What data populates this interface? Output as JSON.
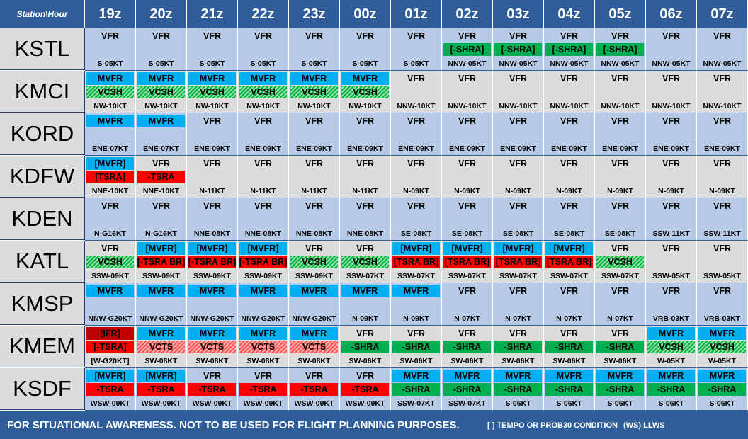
{
  "header": {
    "corner": "Station\\Hour",
    "hours": [
      "19z",
      "20z",
      "21z",
      "22z",
      "23z",
      "00z",
      "01z",
      "02z",
      "03z",
      "04z",
      "05z",
      "06z",
      "07z"
    ]
  },
  "colors": {
    "header": "#2f5d9a",
    "MVFR": "#00b0f0",
    "IFR": "#c00000",
    "thunderstorm": "#ff0000",
    "rain": "#00b050",
    "row_a": "#b7cbe6",
    "row_b": "#dcdcdc"
  },
  "rows": [
    {
      "station": "KSTL",
      "cells": [
        {
          "c1": "VFR",
          "c2": "",
          "w": "S-05KT"
        },
        {
          "c1": "VFR",
          "c2": "",
          "w": "S-05KT"
        },
        {
          "c1": "VFR",
          "c2": "",
          "w": "S-05KT"
        },
        {
          "c1": "VFR",
          "c2": "",
          "w": "S-05KT"
        },
        {
          "c1": "VFR",
          "c2": "",
          "w": "S-05KT"
        },
        {
          "c1": "VFR",
          "c2": "",
          "w": "S-05KT"
        },
        {
          "c1": "VFR",
          "c2": "",
          "w": "S-05KT"
        },
        {
          "c1": "VFR",
          "c2": "[-SHRA]",
          "w": "NNW-05KT"
        },
        {
          "c1": "VFR",
          "c2": "[-SHRA]",
          "w": "NNW-05KT"
        },
        {
          "c1": "VFR",
          "c2": "[-SHRA]",
          "w": "NNW-05KT"
        },
        {
          "c1": "VFR",
          "c2": "[-SHRA]",
          "w": "NNW-05KT"
        },
        {
          "c1": "VFR",
          "c2": "",
          "w": "NNW-05KT"
        },
        {
          "c1": "VFR",
          "c2": "",
          "w": "NNW-05KT"
        }
      ]
    },
    {
      "station": "KMCI",
      "cells": [
        {
          "c1": "MVFR",
          "c2": "VCSH",
          "w": "NW-10KT"
        },
        {
          "c1": "MVFR",
          "c2": "VCSH",
          "w": "NW-10KT"
        },
        {
          "c1": "MVFR",
          "c2": "VCSH",
          "w": "NW-10KT"
        },
        {
          "c1": "MVFR",
          "c2": "VCSH",
          "w": "NW-10KT"
        },
        {
          "c1": "MVFR",
          "c2": "VCSH",
          "w": "NW-10KT"
        },
        {
          "c1": "MVFR",
          "c2": "VCSH",
          "w": "NW-10KT"
        },
        {
          "c1": "VFR",
          "c2": "",
          "w": "NNW-10KT"
        },
        {
          "c1": "VFR",
          "c2": "",
          "w": "NNW-10KT"
        },
        {
          "c1": "VFR",
          "c2": "",
          "w": "NNW-10KT"
        },
        {
          "c1": "VFR",
          "c2": "",
          "w": "NNW-10KT"
        },
        {
          "c1": "VFR",
          "c2": "",
          "w": "NNW-10KT"
        },
        {
          "c1": "VFR",
          "c2": "",
          "w": "NNW-10KT"
        },
        {
          "c1": "VFR",
          "c2": "",
          "w": "NNW-10KT"
        }
      ]
    },
    {
      "station": "KORD",
      "cells": [
        {
          "c1": "MVFR",
          "c2": "",
          "w": "ENE-07KT"
        },
        {
          "c1": "MVFR",
          "c2": "",
          "w": "ENE-07KT"
        },
        {
          "c1": "VFR",
          "c2": "",
          "w": "ENE-09KT"
        },
        {
          "c1": "VFR",
          "c2": "",
          "w": "ENE-09KT"
        },
        {
          "c1": "VFR",
          "c2": "",
          "w": "ENE-09KT"
        },
        {
          "c1": "VFR",
          "c2": "",
          "w": "ENE-09KT"
        },
        {
          "c1": "VFR",
          "c2": "",
          "w": "ENE-09KT"
        },
        {
          "c1": "VFR",
          "c2": "",
          "w": "ENE-09KT"
        },
        {
          "c1": "VFR",
          "c2": "",
          "w": "ENE-09KT"
        },
        {
          "c1": "VFR",
          "c2": "",
          "w": "ENE-09KT"
        },
        {
          "c1": "VFR",
          "c2": "",
          "w": "ENE-09KT"
        },
        {
          "c1": "VFR",
          "c2": "",
          "w": "ENE-09KT"
        },
        {
          "c1": "VFR",
          "c2": "",
          "w": "ENE-09KT"
        }
      ]
    },
    {
      "station": "KDFW",
      "cells": [
        {
          "c1": "[MVFR]",
          "c2": "[TSRA]",
          "w": "NNE-10KT"
        },
        {
          "c1": "VFR",
          "c2": "-TSRA",
          "w": "NNE-10KT"
        },
        {
          "c1": "VFR",
          "c2": "",
          "w": "N-11KT"
        },
        {
          "c1": "VFR",
          "c2": "",
          "w": "N-11KT"
        },
        {
          "c1": "VFR",
          "c2": "",
          "w": "N-11KT"
        },
        {
          "c1": "VFR",
          "c2": "",
          "w": "N-11KT"
        },
        {
          "c1": "VFR",
          "c2": "",
          "w": "N-09KT"
        },
        {
          "c1": "VFR",
          "c2": "",
          "w": "N-09KT"
        },
        {
          "c1": "VFR",
          "c2": "",
          "w": "N-09KT"
        },
        {
          "c1": "VFR",
          "c2": "",
          "w": "N-09KT"
        },
        {
          "c1": "VFR",
          "c2": "",
          "w": "N-09KT"
        },
        {
          "c1": "VFR",
          "c2": "",
          "w": "N-09KT"
        },
        {
          "c1": "VFR",
          "c2": "",
          "w": "N-09KT"
        }
      ]
    },
    {
      "station": "KDEN",
      "cells": [
        {
          "c1": "VFR",
          "c2": "",
          "w": "N-G16KT"
        },
        {
          "c1": "VFR",
          "c2": "",
          "w": "N-G16KT"
        },
        {
          "c1": "VFR",
          "c2": "",
          "w": "NNE-08KT"
        },
        {
          "c1": "VFR",
          "c2": "",
          "w": "NNE-08KT"
        },
        {
          "c1": "VFR",
          "c2": "",
          "w": "NNE-08KT"
        },
        {
          "c1": "VFR",
          "c2": "",
          "w": "NNE-08KT"
        },
        {
          "c1": "VFR",
          "c2": "",
          "w": "SE-08KT"
        },
        {
          "c1": "VFR",
          "c2": "",
          "w": "SE-08KT"
        },
        {
          "c1": "VFR",
          "c2": "",
          "w": "SE-08KT"
        },
        {
          "c1": "VFR",
          "c2": "",
          "w": "SE-08KT"
        },
        {
          "c1": "VFR",
          "c2": "",
          "w": "SE-08KT"
        },
        {
          "c1": "VFR",
          "c2": "",
          "w": "SSW-11KT"
        },
        {
          "c1": "VFR",
          "c2": "",
          "w": "SSW-11KT"
        }
      ]
    },
    {
      "station": "KATL",
      "cells": [
        {
          "c1": "VFR",
          "c2": "VCSH",
          "w": "SSW-09KT"
        },
        {
          "c1": "[MVFR]",
          "c2": "[-TSRA BR]",
          "w": "SSW-09KT"
        },
        {
          "c1": "[MVFR]",
          "c2": "[-TSRA BR]",
          "w": "SSW-09KT"
        },
        {
          "c1": "[MVFR]",
          "c2": "[-TSRA BR]",
          "w": "SSW-09KT"
        },
        {
          "c1": "VFR",
          "c2": "VCSH",
          "w": "SSW-09KT"
        },
        {
          "c1": "VFR",
          "c2": "VCSH",
          "w": "SSW-07KT"
        },
        {
          "c1": "[MVFR]",
          "c2": "[TSRA BR]",
          "w": "SSW-07KT"
        },
        {
          "c1": "[MVFR]",
          "c2": "[TSRA BR]",
          "w": "SSW-07KT"
        },
        {
          "c1": "[MVFR]",
          "c2": "[TSRA BR]",
          "w": "SSW-07KT"
        },
        {
          "c1": "[MVFR]",
          "c2": "[TSRA BR]",
          "w": "SSW-07KT"
        },
        {
          "c1": "VFR",
          "c2": "VCSH",
          "w": "SSW-07KT"
        },
        {
          "c1": "VFR",
          "c2": "",
          "w": "SSW-05KT"
        },
        {
          "c1": "VFR",
          "c2": "",
          "w": "SSW-05KT"
        }
      ]
    },
    {
      "station": "KMSP",
      "cells": [
        {
          "c1": "MVFR",
          "c2": "",
          "w": "NNW-G20KT"
        },
        {
          "c1": "MVFR",
          "c2": "",
          "w": "NNW-G20KT"
        },
        {
          "c1": "MVFR",
          "c2": "",
          "w": "NNW-G20KT"
        },
        {
          "c1": "MVFR",
          "c2": "",
          "w": "NNW-G20KT"
        },
        {
          "c1": "MVFR",
          "c2": "",
          "w": "NNW-G20KT"
        },
        {
          "c1": "MVFR",
          "c2": "",
          "w": "N-09KT"
        },
        {
          "c1": "MVFR",
          "c2": "",
          "w": "N-09KT"
        },
        {
          "c1": "VFR",
          "c2": "",
          "w": "N-07KT"
        },
        {
          "c1": "VFR",
          "c2": "",
          "w": "N-07KT"
        },
        {
          "c1": "VFR",
          "c2": "",
          "w": "N-07KT"
        },
        {
          "c1": "VFR",
          "c2": "",
          "w": "N-07KT"
        },
        {
          "c1": "VFR",
          "c2": "",
          "w": "VRB-03KT"
        },
        {
          "c1": "VFR",
          "c2": "",
          "w": "VRB-03KT"
        }
      ]
    },
    {
      "station": "KMEM",
      "cells": [
        {
          "c1": "[IFR]",
          "c2": "[-TSRA]",
          "w": "[W-G20KT]"
        },
        {
          "c1": "MVFR",
          "c2": "VCTS",
          "w": "SW-08KT"
        },
        {
          "c1": "MVFR",
          "c2": "VCTS",
          "w": "SW-08KT"
        },
        {
          "c1": "MVFR",
          "c2": "VCTS",
          "w": "SW-08KT"
        },
        {
          "c1": "MVFR",
          "c2": "VCTS",
          "w": "SW-08KT"
        },
        {
          "c1": "VFR",
          "c2": "-SHRA",
          "w": "SW-06KT"
        },
        {
          "c1": "VFR",
          "c2": "-SHRA",
          "w": "SW-06KT"
        },
        {
          "c1": "VFR",
          "c2": "-SHRA",
          "w": "SW-06KT"
        },
        {
          "c1": "VFR",
          "c2": "-SHRA",
          "w": "SW-06KT"
        },
        {
          "c1": "VFR",
          "c2": "-SHRA",
          "w": "SW-06KT"
        },
        {
          "c1": "VFR",
          "c2": "-SHRA",
          "w": "SW-06KT"
        },
        {
          "c1": "MVFR",
          "c2": "VCSH",
          "w": "W-05KT"
        },
        {
          "c1": "MVFR",
          "c2": "VCSH",
          "w": "W-05KT"
        }
      ]
    },
    {
      "station": "KSDF",
      "cells": [
        {
          "c1": "[MVFR]",
          "c2": "-TSRA",
          "w": "WSW-09KT"
        },
        {
          "c1": "[MVFR]",
          "c2": "-TSRA",
          "w": "WSW-09KT"
        },
        {
          "c1": "VFR",
          "c2": "-TSRA",
          "w": "WSW-09KT"
        },
        {
          "c1": "VFR",
          "c2": "-TSRA",
          "w": "WSW-09KT"
        },
        {
          "c1": "VFR",
          "c2": "-TSRA",
          "w": "WSW-09KT"
        },
        {
          "c1": "VFR",
          "c2": "-TSRA",
          "w": "WSW-09KT"
        },
        {
          "c1": "MVFR",
          "c2": "-SHRA",
          "w": "SSW-07KT"
        },
        {
          "c1": "MVFR",
          "c2": "-SHRA",
          "w": "SSW-07KT"
        },
        {
          "c1": "MVFR",
          "c2": "-SHRA",
          "w": "S-06KT"
        },
        {
          "c1": "MVFR",
          "c2": "-SHRA",
          "w": "S-06KT"
        },
        {
          "c1": "MVFR",
          "c2": "-SHRA",
          "w": "S-06KT"
        },
        {
          "c1": "MVFR",
          "c2": "-SHRA",
          "w": "S-06KT"
        },
        {
          "c1": "MVFR",
          "c2": "-SHRA",
          "w": "S-06KT"
        }
      ]
    }
  ],
  "footer": {
    "disclaimer": "FOR SITUATIONAL AWARENESS. NOT TO BE USED FOR FLIGHT PLANNING PURPOSES.",
    "tempo_note": "[ ] TEMPO  OR PROB30 CONDITION",
    "llws_note": "(WS) LLWS"
  }
}
